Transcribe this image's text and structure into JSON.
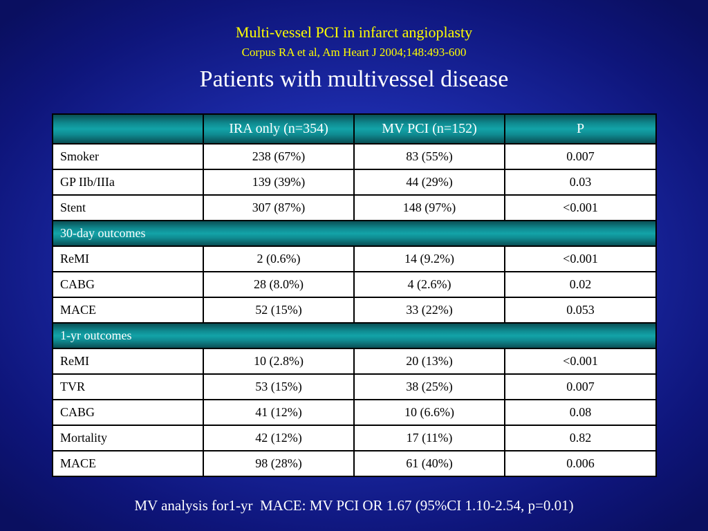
{
  "title": "Multi-vessel PCI in infarct angioplasty",
  "citation": "Corpus RA et al, Am Heart J 2004;148:493-600",
  "heading": "Patients with multivessel disease",
  "table": {
    "headers": [
      "",
      "IRA only (n=354)",
      "MV PCI (n=152)",
      "P"
    ],
    "baseline_rows": [
      {
        "label": "Smoker",
        "ira": "238 (67%)",
        "mv": "83 (55%)",
        "p": "0.007"
      },
      {
        "label": "GP IIb/IIIa",
        "ira": "139 (39%)",
        "mv": "44 (29%)",
        "p": "0.03"
      },
      {
        "label": "Stent",
        "ira": "307 (87%)",
        "mv": "148 (97%)",
        "p": "<0.001"
      }
    ],
    "section_30day": {
      "label": "30-day outcomes",
      "rows": [
        {
          "label": "ReMI",
          "ira": "2 (0.6%)",
          "mv": "14 (9.2%)",
          "p": "<0.001"
        },
        {
          "label": "CABG",
          "ira": "28 (8.0%)",
          "mv": "4 (2.6%)",
          "p": "0.02"
        },
        {
          "label": "MACE",
          "ira": "52 (15%)",
          "mv": "33 (22%)",
          "p": "0.053"
        }
      ]
    },
    "section_1yr": {
      "label": "1-yr outcomes",
      "rows": [
        {
          "label": "ReMI",
          "ira": "10 (2.8%)",
          "mv": "20 (13%)",
          "p": "<0.001"
        },
        {
          "label": "TVR",
          "ira": "53 (15%)",
          "mv": "38 (25%)",
          "p": "0.007"
        },
        {
          "label": "CABG",
          "ira": "41 (12%)",
          "mv": "10 (6.6%)",
          "p": "0.08"
        },
        {
          "label": "Mortality",
          "ira": "42 (12%)",
          "mv": "17 (11%)",
          "p": "0.82"
        },
        {
          "label": "MACE",
          "ira": "98 (28%)",
          "mv": "61 (40%)",
          "p": "0.006"
        }
      ]
    }
  },
  "footer": "MV analysis for1-yr  MACE: MV PCI OR 1.67 (95%CI 1.10-2.54, p=0.01)",
  "colors": {
    "background": "#1c2aa8",
    "title": "#ffff00",
    "header_teal": "#13a3a8"
  }
}
